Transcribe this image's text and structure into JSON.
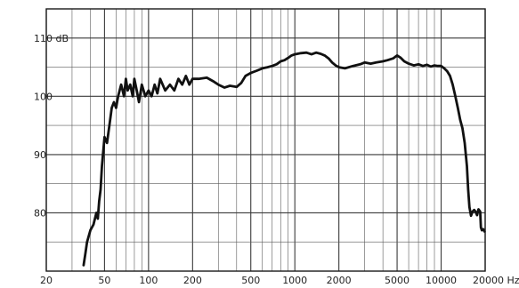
{
  "chart_data": {
    "type": "line",
    "title": "",
    "xlabel": "Hz",
    "ylabel": "dB",
    "x_scale": "log",
    "xlim": [
      20,
      20000
    ],
    "ylim": [
      70,
      115
    ],
    "grid": true,
    "x_ticks": [
      {
        "value": 20,
        "label": "20"
      },
      {
        "value": 50,
        "label": "50"
      },
      {
        "value": 100,
        "label": "100"
      },
      {
        "value": 200,
        "label": "200"
      },
      {
        "value": 500,
        "label": "500"
      },
      {
        "value": 1000,
        "label": "1000"
      },
      {
        "value": 2000,
        "label": "2000"
      },
      {
        "value": 5000,
        "label": "5000"
      },
      {
        "value": 10000,
        "label": "10000"
      },
      {
        "value": 20000,
        "label": "20000 Hz"
      }
    ],
    "y_ticks": [
      {
        "value": 80,
        "label": "80"
      },
      {
        "value": 90,
        "label": "90"
      },
      {
        "value": 100,
        "label": "100"
      },
      {
        "value": 110,
        "label": "110 dB"
      }
    ],
    "series": [
      {
        "color": "#111111",
        "points": [
          [
            36,
            71
          ],
          [
            37,
            73
          ],
          [
            38,
            75
          ],
          [
            40,
            77
          ],
          [
            42,
            78
          ],
          [
            44,
            80
          ],
          [
            45,
            79
          ],
          [
            46,
            82
          ],
          [
            47,
            84
          ],
          [
            48,
            88
          ],
          [
            50,
            93
          ],
          [
            52,
            92
          ],
          [
            54,
            95
          ],
          [
            56,
            98
          ],
          [
            58,
            99
          ],
          [
            60,
            98
          ],
          [
            62,
            100
          ],
          [
            65,
            102
          ],
          [
            68,
            100
          ],
          [
            70,
            103
          ],
          [
            72,
            101
          ],
          [
            75,
            102
          ],
          [
            78,
            100
          ],
          [
            80,
            103
          ],
          [
            83,
            101
          ],
          [
            86,
            99
          ],
          [
            90,
            102
          ],
          [
            95,
            100
          ],
          [
            100,
            101
          ],
          [
            105,
            100
          ],
          [
            110,
            102
          ],
          [
            115,
            100.5
          ],
          [
            120,
            103
          ],
          [
            130,
            101
          ],
          [
            140,
            102
          ],
          [
            150,
            101
          ],
          [
            160,
            103
          ],
          [
            170,
            102
          ],
          [
            180,
            103.5
          ],
          [
            190,
            102
          ],
          [
            200,
            103
          ],
          [
            220,
            103
          ],
          [
            250,
            103.2
          ],
          [
            280,
            102.5
          ],
          [
            300,
            102
          ],
          [
            330,
            101.5
          ],
          [
            360,
            101.8
          ],
          [
            400,
            101.6
          ],
          [
            430,
            102.3
          ],
          [
            460,
            103.5
          ],
          [
            500,
            104
          ],
          [
            550,
            104.4
          ],
          [
            600,
            104.8
          ],
          [
            650,
            105
          ],
          [
            700,
            105.2
          ],
          [
            750,
            105.5
          ],
          [
            800,
            106
          ],
          [
            850,
            106.2
          ],
          [
            900,
            106.6
          ],
          [
            950,
            107
          ],
          [
            1000,
            107.2
          ],
          [
            1100,
            107.4
          ],
          [
            1200,
            107.5
          ],
          [
            1300,
            107.2
          ],
          [
            1400,
            107.5
          ],
          [
            1500,
            107.3
          ],
          [
            1600,
            107
          ],
          [
            1700,
            106.5
          ],
          [
            1800,
            105.8
          ],
          [
            1900,
            105.3
          ],
          [
            2000,
            105
          ],
          [
            2200,
            104.8
          ],
          [
            2500,
            105.2
          ],
          [
            2800,
            105.5
          ],
          [
            3000,
            105.8
          ],
          [
            3300,
            105.6
          ],
          [
            3600,
            105.8
          ],
          [
            4000,
            106
          ],
          [
            4300,
            106.2
          ],
          [
            4700,
            106.5
          ],
          [
            5000,
            107
          ],
          [
            5300,
            106.6
          ],
          [
            5600,
            106
          ],
          [
            6000,
            105.6
          ],
          [
            6500,
            105.3
          ],
          [
            7000,
            105.5
          ],
          [
            7500,
            105.2
          ],
          [
            8000,
            105.4
          ],
          [
            8500,
            105.1
          ],
          [
            9000,
            105.3
          ],
          [
            9500,
            105.2
          ],
          [
            10000,
            105.2
          ],
          [
            10500,
            104.8
          ],
          [
            11000,
            104.3
          ],
          [
            11500,
            103.5
          ],
          [
            12000,
            102
          ],
          [
            12500,
            100
          ],
          [
            13000,
            98
          ],
          [
            13500,
            96
          ],
          [
            14000,
            94.5
          ],
          [
            14500,
            92
          ],
          [
            15000,
            88
          ],
          [
            15300,
            84
          ],
          [
            15600,
            81
          ],
          [
            16000,
            79.5
          ],
          [
            16400,
            80.2
          ],
          [
            16800,
            80.5
          ],
          [
            17200,
            80.2
          ],
          [
            17600,
            79.6
          ],
          [
            18000,
            80.6
          ],
          [
            18500,
            80.2
          ],
          [
            18700,
            77.5
          ],
          [
            19000,
            77
          ],
          [
            19400,
            77.2
          ],
          [
            19800,
            76.8
          ]
        ]
      }
    ]
  }
}
